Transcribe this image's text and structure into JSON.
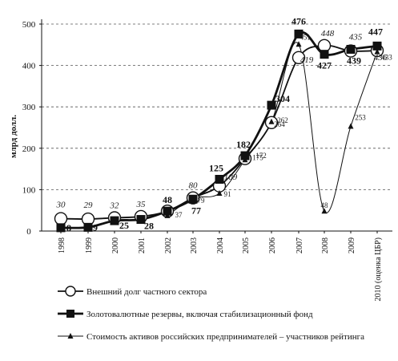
{
  "chart_data": {
    "type": "line",
    "ylabel": "млрд долл.",
    "ylim": [
      0,
      500
    ],
    "yticks": [
      "0",
      "100",
      "200",
      "300",
      "400",
      "500"
    ],
    "categories": [
      "1998",
      "1999",
      "2000",
      "2001",
      "2002",
      "2003",
      "2004",
      "2005",
      "2006",
      "2007",
      "2008",
      "2009",
      "2010 (оценка ЦБР)"
    ],
    "grid": "horizontal dashed",
    "legend": "bottom",
    "series": [
      {
        "name": "Внешний долг частного сектора",
        "marker": "circle",
        "values": [
          30,
          29,
          32,
          35,
          48,
          80,
          109,
          175,
          262,
          419,
          448,
          435,
          436
        ],
        "labels": [
          "30",
          "29",
          "32",
          "35",
          "",
          "80",
          "109",
          "175",
          "262",
          "419",
          "448",
          "435",
          "436"
        ]
      },
      {
        "name": "Золотовалютные резервы, включая стабилизационный фонд",
        "marker": "square",
        "values": [
          8,
          9,
          25,
          28,
          48,
          77,
          125,
          182,
          304,
          476,
          427,
          439,
          447
        ],
        "labels": [
          "8",
          "9",
          "25",
          "28",
          "48",
          "77",
          "125",
          "182",
          "304",
          "476",
          "427",
          "439",
          "447"
        ]
      },
      {
        "name": "Стоимость активов российских предпринимателей – участников рейтинга",
        "marker": "triangle",
        "values": [
          null,
          null,
          null,
          null,
          37,
          79,
          91,
          172,
          264,
          451,
          48,
          253,
          433
        ],
        "labels": [
          "",
          "",
          "",
          "",
          "37",
          "79",
          "91",
          "172",
          "264",
          "451",
          "48",
          "253",
          "433"
        ]
      }
    ]
  }
}
